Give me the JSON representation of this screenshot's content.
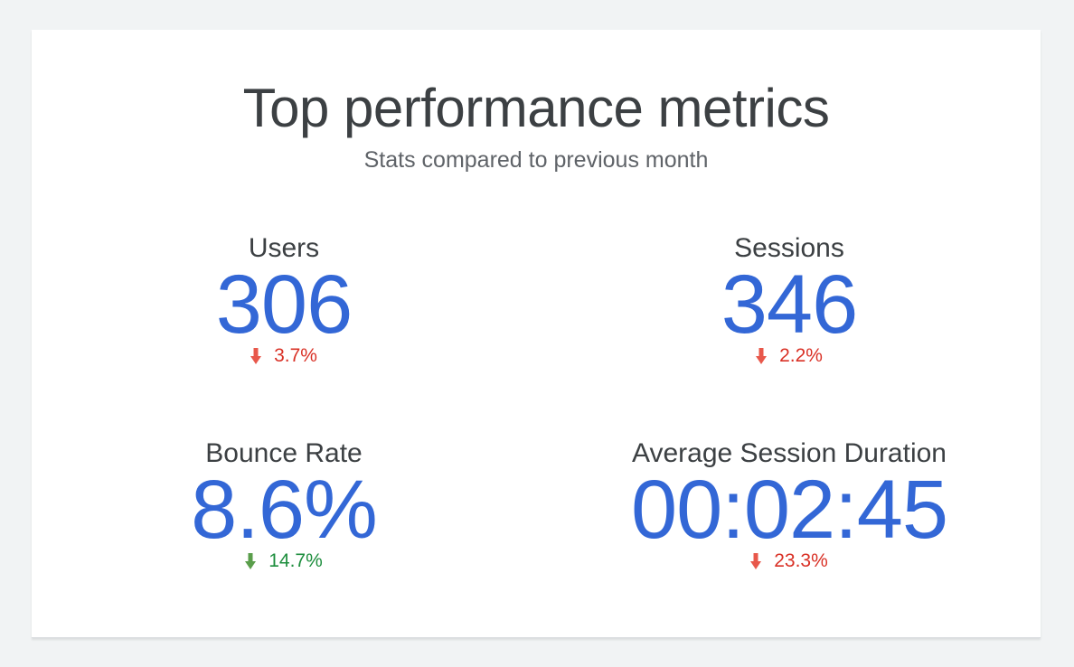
{
  "header": {
    "title": "Top performance metrics",
    "subtitle": "Stats compared to previous month"
  },
  "colors": {
    "value": "#3367d6",
    "negative": "#d93025",
    "positive": "#1e8e3e",
    "arrow_negative": "#e8584b",
    "arrow_positive": "#5a9e4b"
  },
  "metrics": [
    {
      "label": "Users",
      "value": "306",
      "change": "3.7%",
      "direction": "down",
      "sentiment": "negative",
      "icon": "arrow-down-icon"
    },
    {
      "label": "Sessions",
      "value": "346",
      "change": "2.2%",
      "direction": "down",
      "sentiment": "negative",
      "icon": "arrow-down-icon"
    },
    {
      "label": "Bounce Rate",
      "value": "8.6%",
      "change": "14.7%",
      "direction": "down",
      "sentiment": "positive",
      "icon": "arrow-down-icon"
    },
    {
      "label": "Average Session Duration",
      "value": "00:02:45",
      "change": "23.3%",
      "direction": "down",
      "sentiment": "negative",
      "icon": "arrow-down-icon"
    }
  ]
}
